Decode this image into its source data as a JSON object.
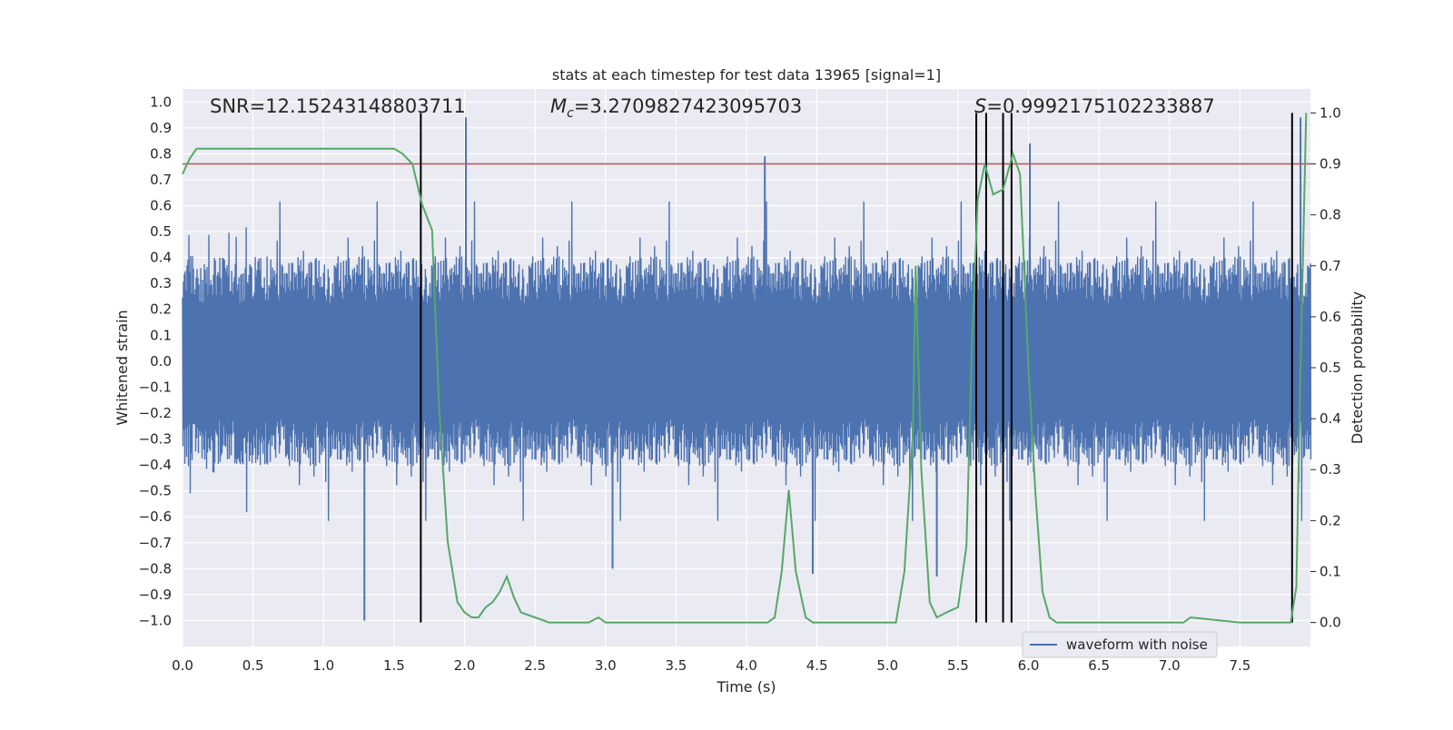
{
  "chart_data": {
    "type": "line",
    "title": "stats at each timestep for test data 13965 [signal=1]",
    "xlabel": "Time (s)",
    "ylabel": "Whitened strain",
    "y2label": "Detection probability",
    "xlim": [
      0.0,
      8.0
    ],
    "ylim": [
      -1.1,
      1.05
    ],
    "y2lim": [
      -0.047,
      1.047
    ],
    "xticks": [
      0.0,
      0.5,
      1.0,
      1.5,
      2.0,
      2.5,
      3.0,
      3.5,
      4.0,
      4.5,
      5.0,
      5.5,
      6.0,
      6.5,
      7.0,
      7.5
    ],
    "xtick_labels": [
      "0.0",
      "0.5",
      "1.0",
      "1.5",
      "2.0",
      "2.5",
      "3.0",
      "3.5",
      "4.0",
      "4.5",
      "5.0",
      "5.5",
      "6.0",
      "6.5",
      "7.0",
      "7.5"
    ],
    "yticks": [
      1.0,
      0.9,
      0.8,
      0.7,
      0.6,
      0.5,
      0.4,
      0.3,
      0.2,
      0.1,
      0.0,
      -0.1,
      -0.2,
      -0.3,
      -0.4,
      -0.5,
      -0.6,
      -0.7,
      -0.8,
      -0.9,
      -1.0
    ],
    "ytick_labels": [
      "1.0",
      "0.9",
      "0.8",
      "0.7",
      "0.6",
      "0.5",
      "0.4",
      "0.3",
      "0.2",
      "0.1",
      "0.0",
      "−0.1",
      "−0.2",
      "−0.3",
      "−0.4",
      "−0.5",
      "−0.6",
      "−0.7",
      "−0.8",
      "−0.9",
      "−1.0"
    ],
    "y2ticks": [
      0.0,
      0.1,
      0.2,
      0.3,
      0.4,
      0.5,
      0.6,
      0.7,
      0.8,
      0.9,
      1.0
    ],
    "y2tick_labels": [
      "0.0",
      "0.1",
      "0.2",
      "0.3",
      "0.4",
      "0.5",
      "0.6",
      "0.7",
      "0.8",
      "0.9",
      "1.0"
    ],
    "annotations": {
      "snr": "SNR=12.15243148803711",
      "mc_symbol": "M",
      "mc_sub": "c",
      "mc_value": "=3.2709827423095703",
      "s_symbol": "S",
      "s_value": "=0.9992175102233887"
    },
    "threshold": {
      "axis": "right",
      "value": 0.9,
      "color": "#c44e52"
    },
    "vertical_lines": [
      1.69,
      5.63,
      5.7,
      5.82,
      5.88,
      7.87
    ],
    "waveform": {
      "name": "waveform with noise",
      "color": "#4c72b0",
      "baseline_amplitude": 0.3,
      "spikes": [
        {
          "t": 1.29,
          "v": -1.0
        },
        {
          "t": 2.01,
          "v": 0.94
        },
        {
          "t": 4.13,
          "v": 0.79
        },
        {
          "t": 6.01,
          "v": 0.84
        },
        {
          "t": 3.05,
          "v": -0.8
        },
        {
          "t": 4.47,
          "v": -0.82
        },
        {
          "t": 5.35,
          "v": -0.83
        },
        {
          "t": 7.93,
          "v": 0.94
        }
      ]
    },
    "probability": {
      "color": "#55a868",
      "t": [
        0.0,
        0.05,
        0.1,
        0.2,
        0.5,
        1.0,
        1.4,
        1.5,
        1.56,
        1.63,
        1.7,
        1.77,
        1.82,
        1.88,
        1.95,
        2.0,
        2.05,
        2.1,
        2.15,
        2.2,
        2.25,
        2.3,
        2.35,
        2.4,
        2.6,
        2.8,
        2.88,
        2.95,
        3.0,
        3.2,
        3.5,
        4.0,
        4.1,
        4.15,
        4.2,
        4.25,
        4.3,
        4.35,
        4.42,
        4.47,
        4.6,
        5.0,
        5.06,
        5.12,
        5.18,
        5.2,
        5.24,
        5.3,
        5.35,
        5.42,
        5.5,
        5.56,
        5.6,
        5.64,
        5.69,
        5.75,
        5.82,
        5.89,
        5.94,
        6.0,
        6.05,
        6.1,
        6.15,
        6.2,
        6.5,
        7.0,
        7.1,
        7.15,
        7.5,
        7.8,
        7.86,
        7.9,
        7.93,
        7.97
      ],
      "p": [
        0.88,
        0.91,
        0.93,
        0.93,
        0.93,
        0.93,
        0.93,
        0.93,
        0.92,
        0.9,
        0.82,
        0.77,
        0.42,
        0.16,
        0.04,
        0.02,
        0.01,
        0.01,
        0.03,
        0.04,
        0.06,
        0.09,
        0.05,
        0.02,
        0.0,
        0.0,
        0.0,
        0.01,
        0.0,
        0.0,
        0.0,
        0.0,
        0.0,
        0.0,
        0.01,
        0.1,
        0.26,
        0.1,
        0.01,
        0.0,
        0.0,
        0.0,
        0.0,
        0.1,
        0.37,
        0.7,
        0.3,
        0.04,
        0.01,
        0.02,
        0.03,
        0.15,
        0.55,
        0.83,
        0.9,
        0.84,
        0.85,
        0.92,
        0.88,
        0.5,
        0.25,
        0.06,
        0.01,
        0.0,
        0.0,
        0.0,
        0.0,
        0.01,
        0.0,
        0.0,
        0.0,
        0.07,
        0.5,
        1.0
      ]
    },
    "legend": {
      "entries": [
        "waveform with noise"
      ],
      "placement": "lower-right"
    }
  }
}
